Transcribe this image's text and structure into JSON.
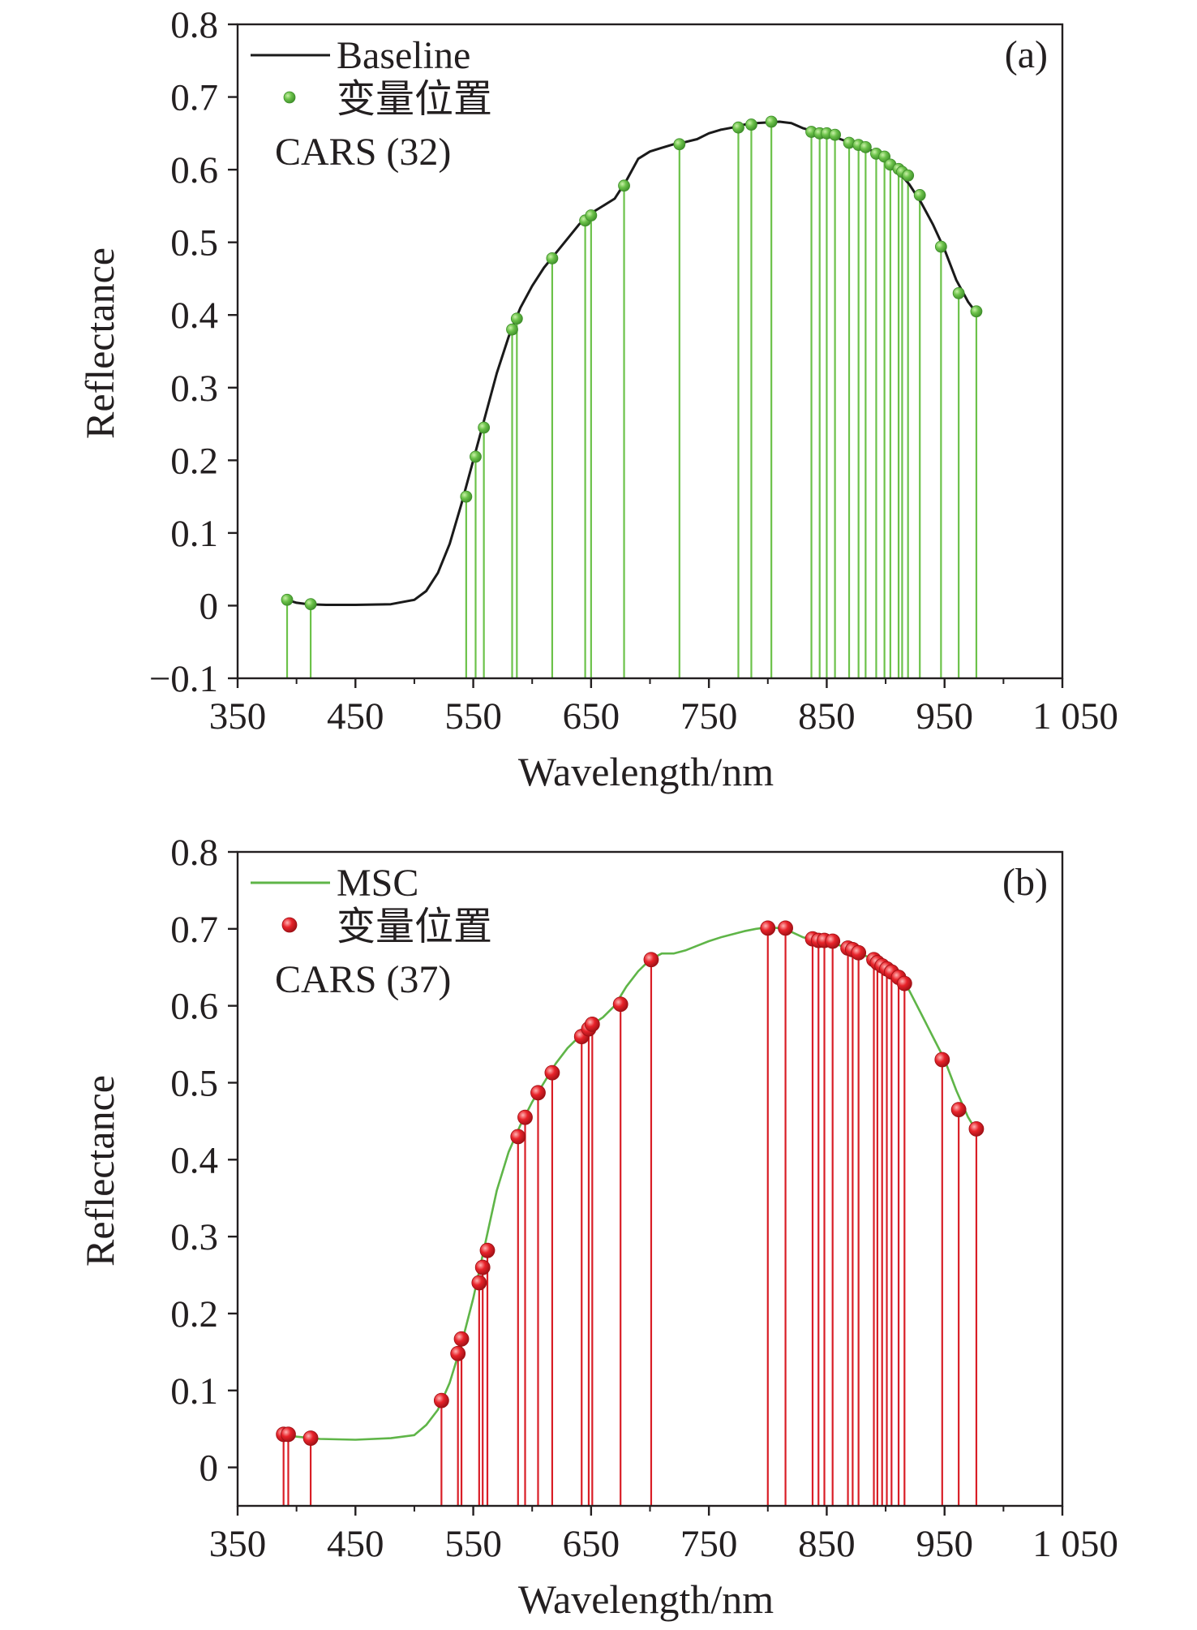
{
  "chart_data": [
    {
      "type": "line",
      "panel_label": "(a)",
      "title": "",
      "xlabel": "Wavelength/nm",
      "ylabel": "Reflectance",
      "xlim": [
        350,
        1050
      ],
      "ylim": [
        -0.1,
        0.8
      ],
      "xticks": [
        350,
        450,
        550,
        650,
        750,
        850,
        950,
        1050
      ],
      "xtick_labels": [
        "350",
        "450",
        "550",
        "650",
        "750",
        "850",
        "950",
        "1 050"
      ],
      "yticks": [
        -0.1,
        0,
        0.1,
        0.2,
        0.3,
        0.4,
        0.5,
        0.6,
        0.7,
        0.8
      ],
      "ytick_labels": [
        "−0.1",
        "0",
        "0.1",
        "0.2",
        "0.3",
        "0.4",
        "0.5",
        "0.6",
        "0.7",
        "0.8"
      ],
      "grid": false,
      "legend_position": "top-left",
      "legend": [
        "Baseline",
        "变量位置"
      ],
      "annotation": "CARS (32)",
      "colors": {
        "line": "#1a1a1a",
        "marker": "#6cc24a",
        "stem": "#6cc24a",
        "marker_edge": "#3e8e2a"
      },
      "curve": {
        "name": "Baseline",
        "x": [
          392,
          400,
          410,
          425,
          450,
          480,
          500,
          510,
          520,
          530,
          540,
          550,
          560,
          570,
          580,
          590,
          600,
          610,
          620,
          630,
          640,
          650,
          660,
          670,
          680,
          690,
          700,
          710,
          720,
          730,
          740,
          750,
          760,
          770,
          780,
          790,
          800,
          810,
          820,
          830,
          840,
          850,
          860,
          870,
          880,
          890,
          900,
          910,
          920,
          930,
          940,
          950,
          960,
          970,
          976
        ],
        "y": [
          0.008,
          0.004,
          0.002,
          0.001,
          0.001,
          0.002,
          0.008,
          0.02,
          0.045,
          0.085,
          0.14,
          0.2,
          0.26,
          0.32,
          0.37,
          0.41,
          0.44,
          0.465,
          0.485,
          0.505,
          0.525,
          0.54,
          0.55,
          0.56,
          0.585,
          0.615,
          0.625,
          0.63,
          0.635,
          0.638,
          0.642,
          0.65,
          0.655,
          0.658,
          0.662,
          0.664,
          0.665,
          0.666,
          0.664,
          0.657,
          0.652,
          0.648,
          0.643,
          0.637,
          0.632,
          0.625,
          0.612,
          0.598,
          0.58,
          0.555,
          0.525,
          0.49,
          0.448,
          0.418,
          0.405
        ]
      },
      "markers": {
        "name": "变量位置",
        "x": [
          392,
          412,
          544,
          552,
          559,
          583,
          587,
          617,
          645,
          650,
          678,
          725,
          775,
          786,
          803,
          837,
          844,
          850,
          857,
          869,
          877,
          883,
          892,
          899,
          904,
          911,
          914,
          919,
          929,
          947,
          962,
          977
        ],
        "y": [
          0.008,
          0.002,
          0.15,
          0.205,
          0.245,
          0.38,
          0.395,
          0.478,
          0.53,
          0.537,
          0.578,
          0.635,
          0.658,
          0.662,
          0.666,
          0.652,
          0.65,
          0.65,
          0.648,
          0.637,
          0.634,
          0.631,
          0.622,
          0.618,
          0.607,
          0.601,
          0.597,
          0.592,
          0.565,
          0.494,
          0.43,
          0.405
        ]
      }
    },
    {
      "type": "line",
      "panel_label": "(b)",
      "title": "",
      "xlabel": "Wavelength/nm",
      "ylabel": "Reflectance",
      "xlim": [
        350,
        1050
      ],
      "ylim": [
        -0.05,
        0.8
      ],
      "xticks": [
        350,
        450,
        550,
        650,
        750,
        850,
        950,
        1050
      ],
      "xtick_labels": [
        "350",
        "450",
        "550",
        "650",
        "750",
        "850",
        "950",
        "1 050"
      ],
      "yticks": [
        0,
        0.1,
        0.2,
        0.3,
        0.4,
        0.5,
        0.6,
        0.7,
        0.8
      ],
      "ytick_labels": [
        "0",
        "0.1",
        "0.2",
        "0.3",
        "0.4",
        "0.5",
        "0.6",
        "0.7",
        "0.8"
      ],
      "grid": false,
      "legend_position": "top-left",
      "legend": [
        "MSC",
        "变量位置"
      ],
      "annotation": "CARS (37)",
      "colors": {
        "line": "#5fb548",
        "marker": "#e8232a",
        "stem": "#d91e26",
        "marker_edge": "#9e1015"
      },
      "curve": {
        "name": "MSC",
        "x": [
          389,
          400,
          420,
          450,
          480,
          500,
          510,
          520,
          530,
          540,
          550,
          560,
          570,
          580,
          590,
          600,
          610,
          620,
          630,
          640,
          650,
          660,
          670,
          680,
          690,
          700,
          710,
          720,
          730,
          740,
          750,
          760,
          770,
          780,
          790,
          800,
          810,
          820,
          830,
          840,
          850,
          860,
          870,
          880,
          890,
          900,
          910,
          920,
          930,
          940,
          950,
          960,
          970,
          976
        ],
        "y": [
          0.043,
          0.04,
          0.037,
          0.036,
          0.038,
          0.042,
          0.055,
          0.075,
          0.11,
          0.16,
          0.22,
          0.29,
          0.36,
          0.41,
          0.445,
          0.475,
          0.5,
          0.525,
          0.545,
          0.56,
          0.575,
          0.585,
          0.6,
          0.625,
          0.645,
          0.66,
          0.668,
          0.668,
          0.672,
          0.678,
          0.684,
          0.689,
          0.693,
          0.697,
          0.7,
          0.702,
          0.701,
          0.696,
          0.689,
          0.686,
          0.683,
          0.679,
          0.673,
          0.667,
          0.66,
          0.652,
          0.642,
          0.62,
          0.59,
          0.56,
          0.53,
          0.49,
          0.455,
          0.44
        ]
      },
      "markers": {
        "name": "变量位置",
        "x": [
          389,
          393,
          412,
          523,
          537,
          540,
          555,
          558,
          562,
          588,
          594,
          605,
          617,
          642,
          648,
          651,
          675,
          701,
          800,
          815,
          838,
          843,
          848,
          855,
          868,
          872,
          877,
          890,
          893,
          897,
          901,
          905,
          911,
          916,
          948,
          962,
          977
        ],
        "y": [
          0.043,
          0.043,
          0.038,
          0.087,
          0.148,
          0.167,
          0.24,
          0.26,
          0.282,
          0.43,
          0.455,
          0.487,
          0.513,
          0.56,
          0.57,
          0.576,
          0.602,
          0.66,
          0.701,
          0.701,
          0.687,
          0.685,
          0.685,
          0.684,
          0.675,
          0.673,
          0.669,
          0.66,
          0.656,
          0.652,
          0.648,
          0.644,
          0.637,
          0.629,
          0.53,
          0.465,
          0.44
        ]
      }
    }
  ]
}
